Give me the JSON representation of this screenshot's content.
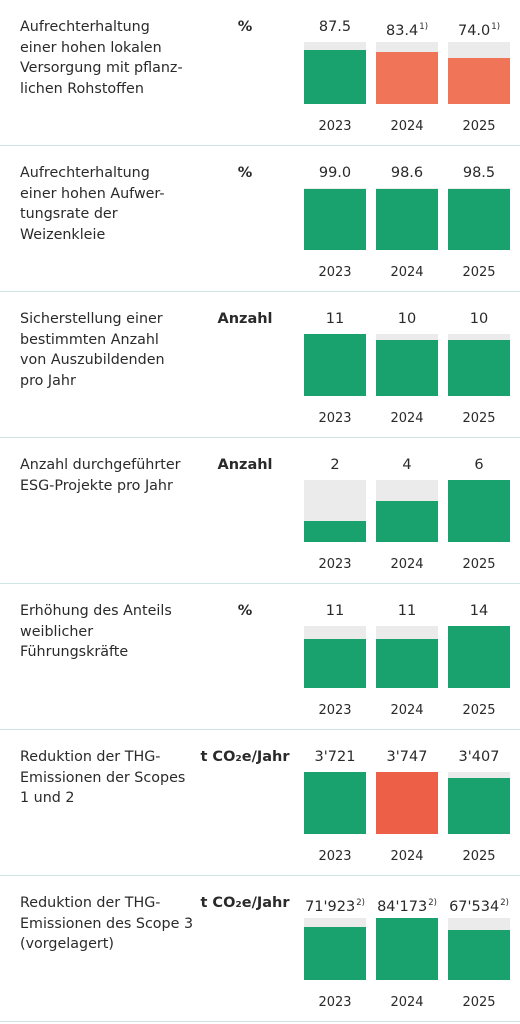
{
  "chart_data": [
    {
      "type": "bar",
      "label": "Aufrechterhaltung\neiner hohen lokalen\nVersorgung mit pflanz-\nlichen Rohstoffen",
      "unit": "%",
      "categories": [
        "2023",
        "2024",
        "2025"
      ],
      "values": [
        87.5,
        83.4,
        74.0
      ],
      "value_labels": [
        "87.5",
        "83.4",
        "74.0"
      ],
      "footnotes": [
        "",
        "1)",
        "1)"
      ],
      "colors": [
        "#1aa26e",
        "#f07457",
        "#f07457"
      ],
      "target": 100
    },
    {
      "type": "bar",
      "label": "Aufrechterhaltung\neiner hohen Aufwer-\ntungsrate der\nWeizenkleie",
      "unit": "%",
      "categories": [
        "2023",
        "2024",
        "2025"
      ],
      "values": [
        99.0,
        98.6,
        98.5
      ],
      "value_labels": [
        "99.0",
        "98.6",
        "98.5"
      ],
      "footnotes": [
        "",
        "",
        ""
      ],
      "colors": [
        "#1aa26e",
        "#1aa26e",
        "#1aa26e"
      ],
      "target": 100
    },
    {
      "type": "bar",
      "label": "Sicherstellung einer\nbestimmten Anzahl\nvon Auszubildenden\npro Jahr",
      "unit": "Anzahl",
      "categories": [
        "2023",
        "2024",
        "2025"
      ],
      "values": [
        11,
        10,
        10
      ],
      "value_labels": [
        "11",
        "10",
        "10"
      ],
      "footnotes": [
        "",
        "",
        ""
      ],
      "colors": [
        "#1aa26e",
        "#1aa26e",
        "#1aa26e"
      ],
      "target": 11
    },
    {
      "type": "bar",
      "label": "Anzahl durchgeführter\nESG-Projekte pro Jahr",
      "unit": "Anzahl",
      "categories": [
        "2023",
        "2024",
        "2025"
      ],
      "values": [
        2,
        4,
        6
      ],
      "value_labels": [
        "2",
        "4",
        "6"
      ],
      "footnotes": [
        "",
        "",
        ""
      ],
      "colors": [
        "#1aa26e",
        "#1aa26e",
        "#1aa26e"
      ],
      "target": 6
    },
    {
      "type": "bar",
      "label": "Erhöhung des Anteils\nweiblicher\nFührungskräfte",
      "unit": "%",
      "categories": [
        "2023",
        "2024",
        "2025"
      ],
      "values": [
        11,
        11,
        14
      ],
      "value_labels": [
        "11",
        "11",
        "14"
      ],
      "footnotes": [
        "",
        "",
        ""
      ],
      "colors": [
        "#1aa26e",
        "#1aa26e",
        "#1aa26e"
      ],
      "target": 14
    },
    {
      "type": "bar",
      "label": "Reduktion der THG-\nEmissionen der Scopes\n1 und 2",
      "unit": "t CO₂e/Jahr",
      "categories": [
        "2023",
        "2024",
        "2025"
      ],
      "values": [
        3721,
        3747,
        3407
      ],
      "value_labels": [
        "3'721",
        "3'747",
        "3'407"
      ],
      "footnotes": [
        "",
        "",
        ""
      ],
      "colors": [
        "#1aa26e",
        "#ee5f48",
        "#1aa26e"
      ],
      "target": 3747
    },
    {
      "type": "bar",
      "label": "Reduktion der THG-\nEmissionen des Scope 3\n(vorgelagert)",
      "unit": "t CO₂e/Jahr",
      "categories": [
        "2023",
        "2024",
        "2025"
      ],
      "values": [
        71923,
        84173,
        67534
      ],
      "value_labels": [
        "71'923",
        "84'173",
        "67'534"
      ],
      "footnotes": [
        "2)",
        "2)",
        "2)"
      ],
      "colors": [
        "#1aa26e",
        "#1aa26e",
        "#1aa26e"
      ],
      "target": 84173
    }
  ]
}
